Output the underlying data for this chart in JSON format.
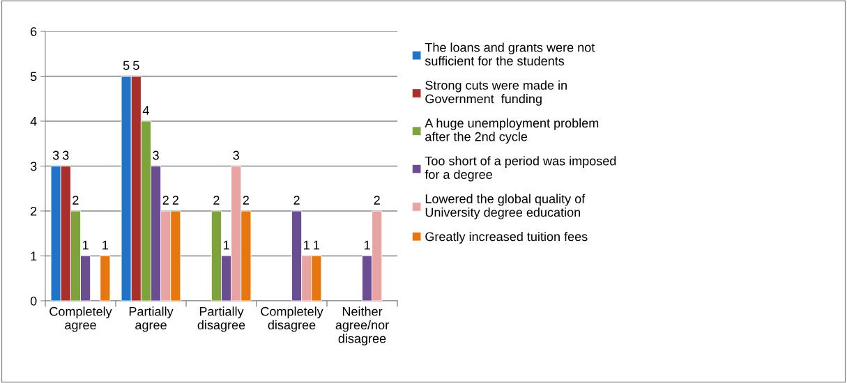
{
  "chart_data": {
    "type": "bar",
    "categories": [
      "Completely\nagree",
      "Partially\nagree",
      "Partially\ndisagree",
      "Completely\ndisagree",
      "Neither\nagree/nor\ndisagree"
    ],
    "series": [
      {
        "name": "The loans and grants were not\nsufficient for the students",
        "color": "#1f74c8",
        "values": [
          3,
          5,
          null,
          null,
          null
        ]
      },
      {
        "name": "Strong cuts were made in\nGovernment  funding",
        "color": "#a8302c",
        "values": [
          3,
          5,
          null,
          null,
          null
        ]
      },
      {
        "name": "A huge unemployment problem\nafter the 2nd cycle",
        "color": "#7ea23c",
        "values": [
          2,
          4,
          2,
          null,
          null
        ]
      },
      {
        "name": "Too short of a period was imposed\nfor a degree",
        "color": "#6b4e92",
        "values": [
          1,
          3,
          1,
          2,
          1
        ]
      },
      {
        "name": "Lowered the global quality of\nUniversity degree education",
        "color": "#e8a3a3",
        "values": [
          null,
          2,
          3,
          1,
          2
        ]
      },
      {
        "name": "Greatly increased tuition fees",
        "color": "#e8760f",
        "values": [
          1,
          2,
          2,
          1,
          null
        ]
      }
    ],
    "ylim": [
      0,
      6
    ],
    "yticks": [
      0,
      1,
      2,
      3,
      4,
      5,
      6
    ],
    "grid": "y",
    "legend": "right",
    "data_labels": true
  }
}
